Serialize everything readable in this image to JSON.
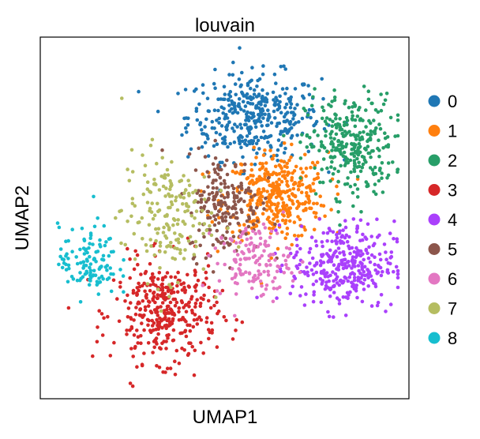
{
  "chart_data": {
    "type": "scatter",
    "title": "louvain",
    "xlabel": "UMAP1",
    "ylabel": "UMAP2",
    "grid": false,
    "axis_ticks": false,
    "legend_position": "right",
    "series": [
      {
        "name": "0",
        "color": "#1f77b4",
        "center": [
          0.58,
          0.78
        ],
        "spread": [
          0.09,
          0.06
        ],
        "count": 380
      },
      {
        "name": "1",
        "color": "#ff7f0e",
        "center": [
          0.64,
          0.56
        ],
        "spread": [
          0.07,
          0.06
        ],
        "count": 370
      },
      {
        "name": "2",
        "color": "#279e68",
        "center": [
          0.84,
          0.7
        ],
        "spread": [
          0.06,
          0.07
        ],
        "count": 300
      },
      {
        "name": "3",
        "color": "#d62728",
        "center": [
          0.34,
          0.24
        ],
        "spread": [
          0.07,
          0.07
        ],
        "count": 370
      },
      {
        "name": "4",
        "color": "#aa40fc",
        "center": [
          0.82,
          0.37
        ],
        "spread": [
          0.07,
          0.06
        ],
        "count": 330
      },
      {
        "name": "5",
        "color": "#8c564b",
        "center": [
          0.5,
          0.54
        ],
        "spread": [
          0.05,
          0.07
        ],
        "count": 200
      },
      {
        "name": "6",
        "color": "#e377c2",
        "center": [
          0.58,
          0.38
        ],
        "spread": [
          0.05,
          0.05
        ],
        "count": 140
      },
      {
        "name": "7",
        "color": "#b5bd61",
        "center": [
          0.34,
          0.51
        ],
        "spread": [
          0.06,
          0.09
        ],
        "count": 180
      },
      {
        "name": "8",
        "color": "#17becf",
        "center": [
          0.13,
          0.38
        ],
        "spread": [
          0.04,
          0.05
        ],
        "count": 120
      }
    ]
  }
}
